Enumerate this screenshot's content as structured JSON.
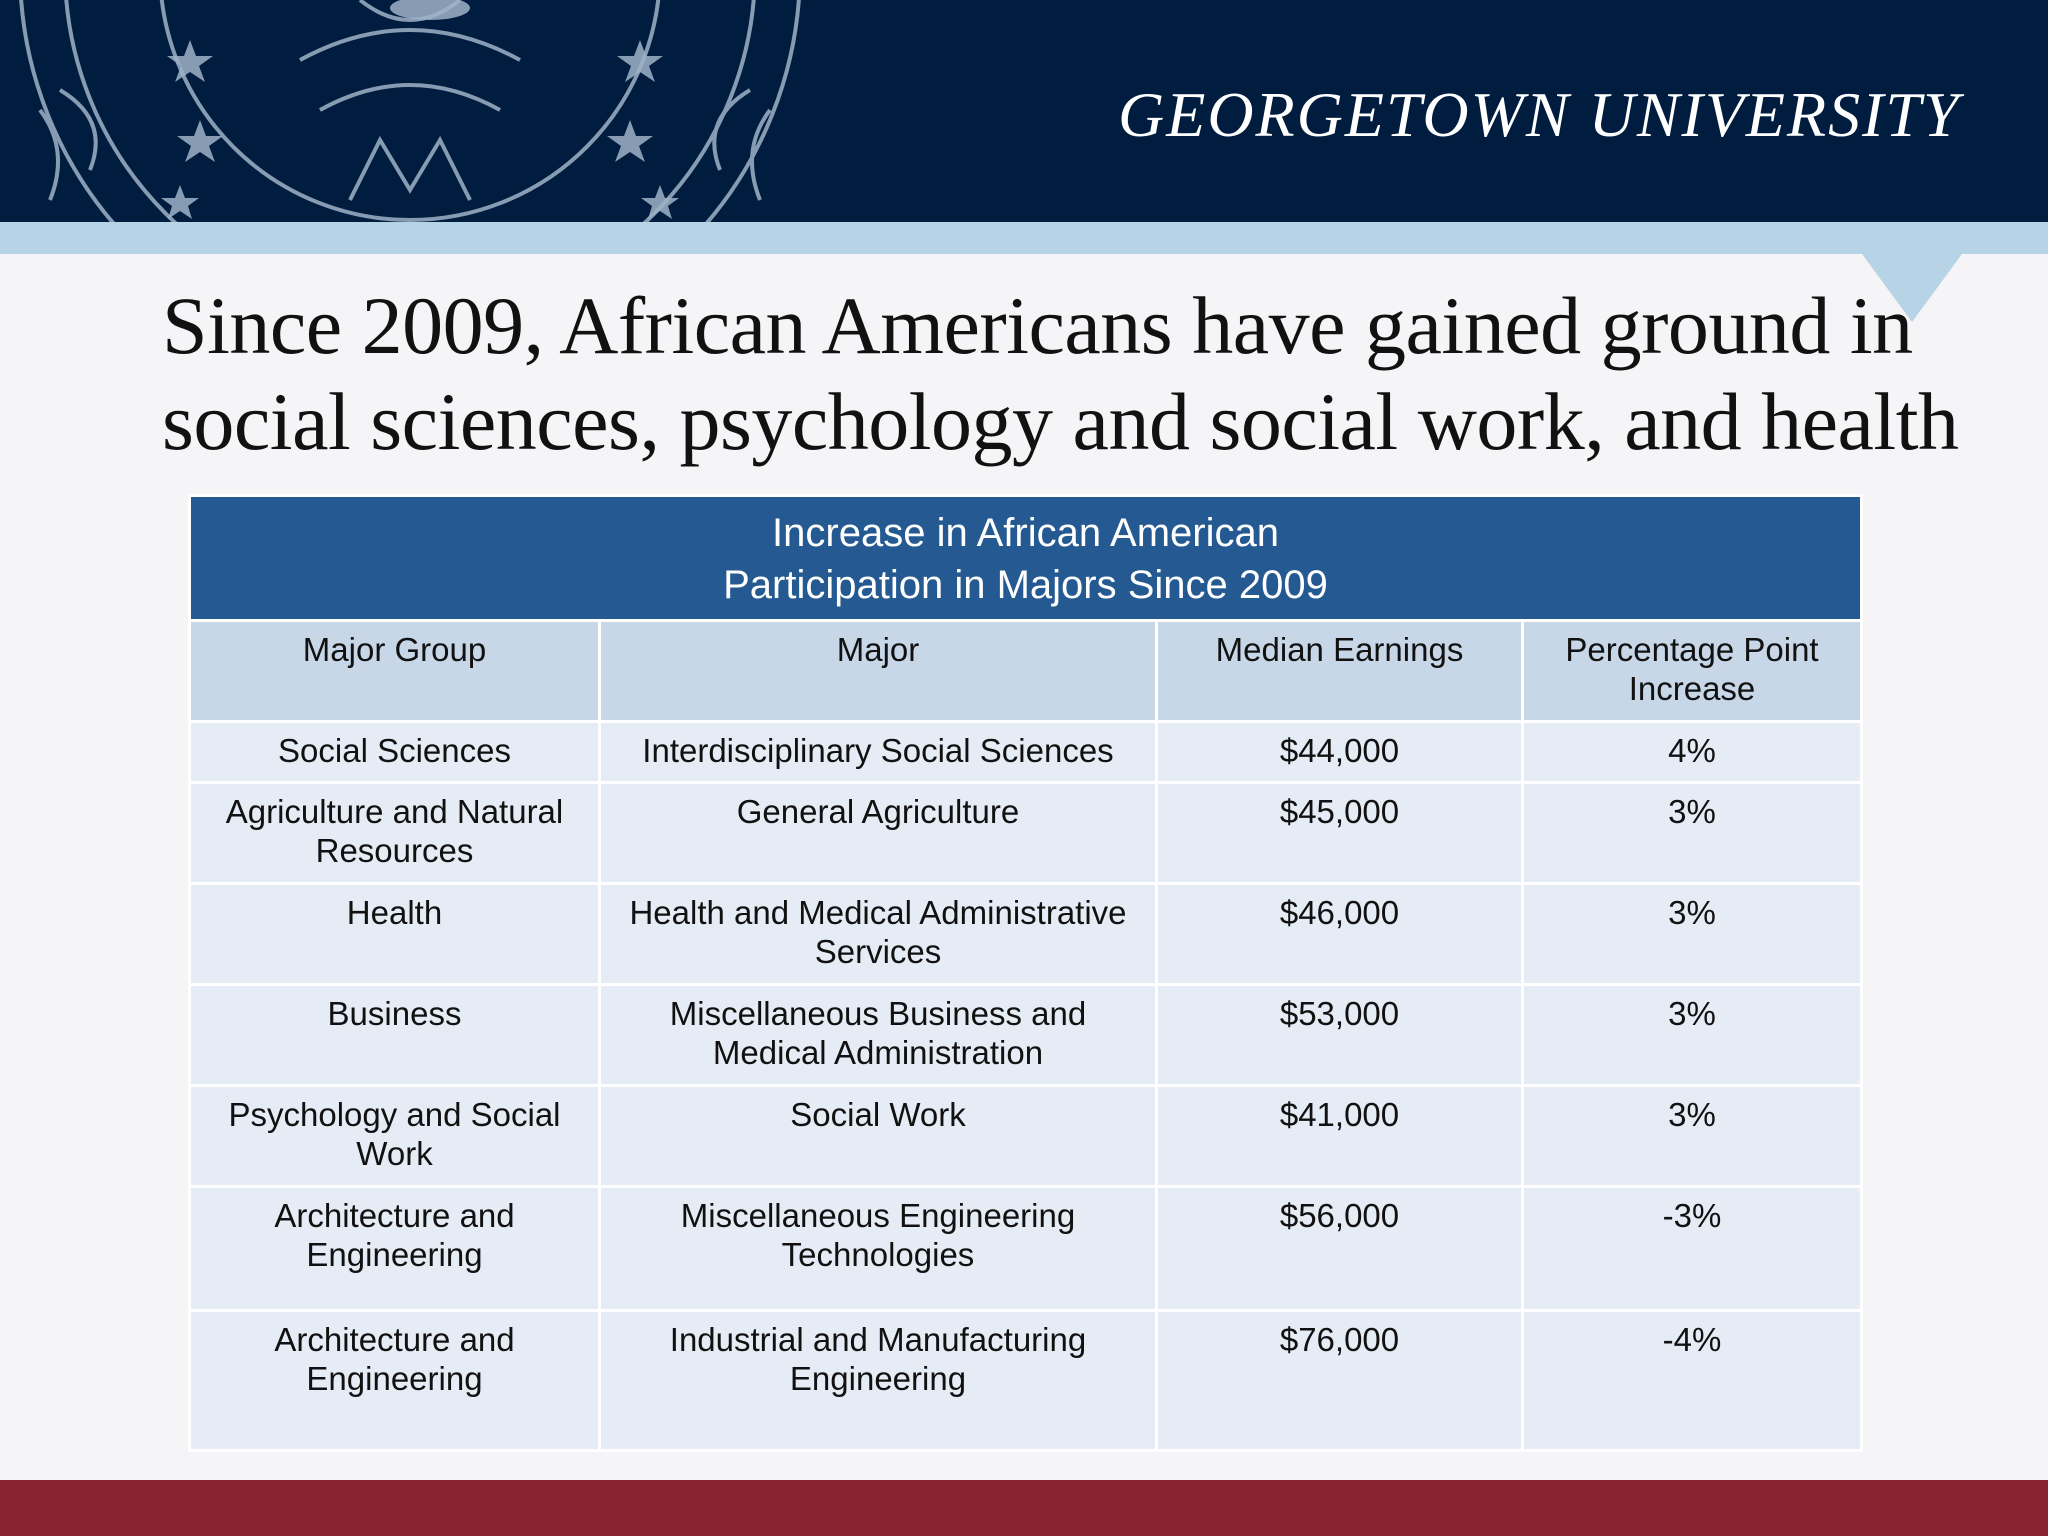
{
  "header": {
    "wordmark": "GEORGETOWN UNIVERSITY",
    "seal_icon": "university-seal-icon",
    "background": "#001c3f",
    "band_color": "#b7d3e6"
  },
  "title": {
    "line1": "Since 2009, African Americans have gained ground in",
    "line2": "social sciences, psychology and social work, and health"
  },
  "table": {
    "caption_line1": "Increase in African American",
    "caption_line2": "Participation in Majors Since 2009",
    "columns": [
      "Major Group",
      "Major",
      "Median Earnings",
      "Percentage Point Increase"
    ],
    "rows": [
      {
        "group": "Social Sciences",
        "major": "Interdisciplinary Social Sciences",
        "earnings": "$44,000",
        "increase": "4%"
      },
      {
        "group": "Agriculture and Natural Resources",
        "major": "General Agriculture",
        "earnings": "$45,000",
        "increase": "3%"
      },
      {
        "group": "Health",
        "major": "Health and Medical Administrative Services",
        "earnings": "$46,000",
        "increase": "3%"
      },
      {
        "group": "Business",
        "major": "Miscellaneous Business and Medical Administration",
        "earnings": "$53,000",
        "increase": "3%"
      },
      {
        "group": "Psychology and Social Work",
        "major": "Social Work",
        "earnings": "$41,000",
        "increase": "3%"
      },
      {
        "group": "Architecture and Engineering",
        "major": "Miscellaneous Engineering Technologies",
        "earnings": "$56,000",
        "increase": "-3%"
      },
      {
        "group": "Architecture and Engineering",
        "major": "Industrial and Manufacturing Engineering",
        "earnings": "$76,000",
        "increase": "-4%"
      }
    ],
    "caption_color": "#245991",
    "header_color": "#c7d7e8",
    "row_color": "#e6ecf5"
  },
  "footer": {
    "color": "#8b2232"
  }
}
